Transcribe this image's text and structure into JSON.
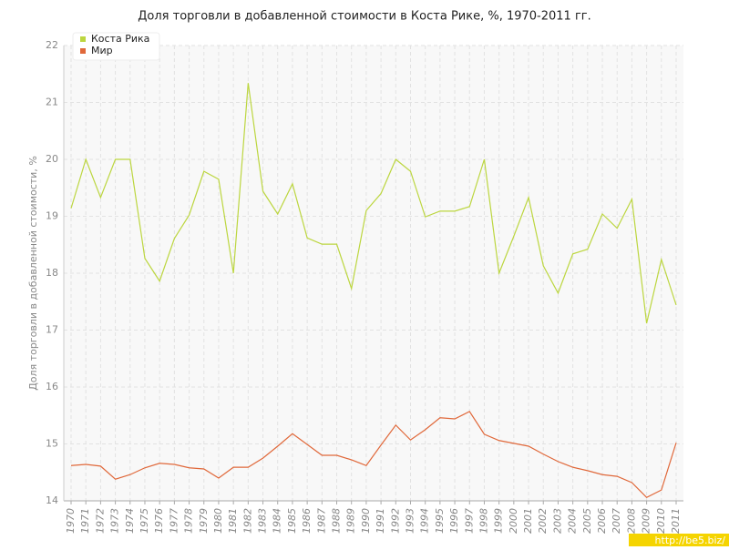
{
  "chart_data": {
    "type": "line",
    "title": "Доля торговли в добавленной стоимости в Коста Рике, %, 1970-2011 гг.",
    "y_label": "Доля торговли в добавленной стоимости, %",
    "watermark": "http://be5.biz/",
    "categories": [
      "1970",
      "1971",
      "1972",
      "1973",
      "1974",
      "1975",
      "1976",
      "1977",
      "1978",
      "1979",
      "1980",
      "1981",
      "1982",
      "1983",
      "1984",
      "1985",
      "1986",
      "1987",
      "1988",
      "1989",
      "1990",
      "1991",
      "1992",
      "1993",
      "1994",
      "1995",
      "1996",
      "1997",
      "1998",
      "1999",
      "2000",
      "2001",
      "2002",
      "2003",
      "2004",
      "2005",
      "2006",
      "2007",
      "2008",
      "2009",
      "2010",
      "2011"
    ],
    "series": [
      {
        "name": "Коста Рика",
        "color": "#bcd63f",
        "values": [
          19.14,
          20.0,
          19.33,
          20.0,
          20.0,
          18.26,
          17.86,
          18.61,
          19.02,
          19.79,
          19.65,
          18.0,
          21.34,
          19.44,
          19.04,
          19.57,
          18.62,
          18.51,
          18.51,
          17.73,
          19.1,
          19.4,
          20.0,
          19.79,
          18.99,
          19.09,
          19.09,
          19.17,
          20.0,
          18.0,
          18.65,
          19.33,
          18.13,
          17.65,
          18.34,
          18.42,
          19.04,
          18.79,
          19.3,
          17.12,
          18.24,
          17.44
        ]
      },
      {
        "name": "Мир",
        "color": "#e0683a",
        "values": [
          14.62,
          14.64,
          14.61,
          14.38,
          14.46,
          14.58,
          14.66,
          14.64,
          14.58,
          14.56,
          14.4,
          14.59,
          14.59,
          14.75,
          14.96,
          15.18,
          14.99,
          14.8,
          14.8,
          14.72,
          14.62,
          14.98,
          15.33,
          15.07,
          15.25,
          15.46,
          15.44,
          15.57,
          15.17,
          15.06,
          15.01,
          14.96,
          14.82,
          14.69,
          14.59,
          14.53,
          14.46,
          14.43,
          14.32,
          14.06,
          14.19,
          15.02
        ]
      }
    ],
    "ylim": [
      14,
      22
    ],
    "yticks": [
      14,
      15,
      16,
      17,
      18,
      19,
      20,
      21,
      22
    ],
    "grid": true,
    "legend": "top-left"
  }
}
